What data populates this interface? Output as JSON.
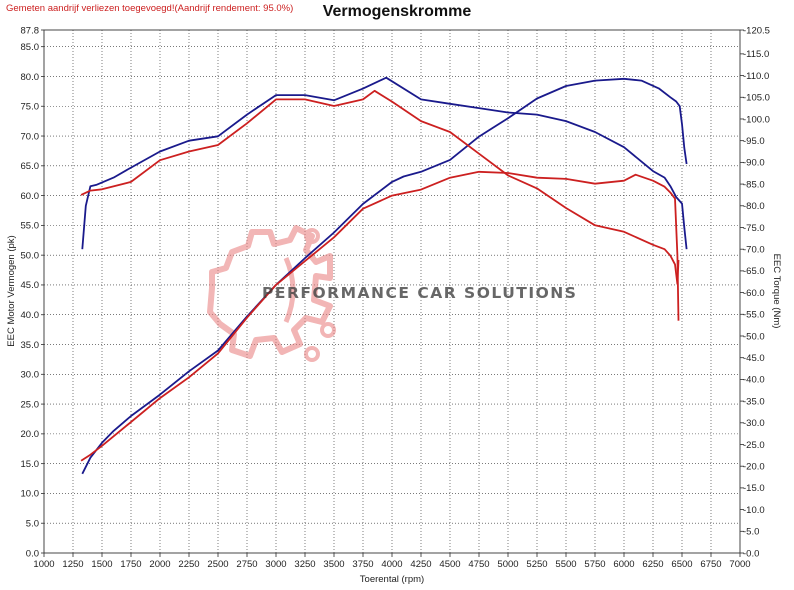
{
  "header": {
    "note": "Gemeten aandrijf verliezen toegevoegd!(Aandrijf rendement: 95.0%)",
    "title": "Vermogenskromme"
  },
  "watermark": {
    "text": "PERFORMANCE CAR SOLUTIONS"
  },
  "colors": {
    "blue": "#1a1a8c",
    "red": "#cc2020",
    "grid": "#2a2a2a",
    "logo": "#e87a7a"
  },
  "chart_data": {
    "type": "line",
    "title": "Vermogenskromme",
    "xlabel": "Toerental (rpm)",
    "ylabel_left": "EEC Motor Vermogen (pk)",
    "ylabel_right": "EEC Torque (Nm)",
    "xlim": [
      1000,
      7000
    ],
    "ylim_left": [
      0,
      87.8
    ],
    "ylim_right": [
      0,
      120.5
    ],
    "x_ticks": [
      "1000",
      "1250",
      "1500",
      "1750",
      "2000",
      "2250",
      "2500",
      "2750",
      "3000",
      "3250",
      "3500",
      "3750",
      "4000",
      "4250",
      "4500",
      "4750",
      "5000",
      "5250",
      "5500",
      "5750",
      "6000",
      "6250",
      "6500",
      "6750",
      "7000"
    ],
    "y_left_ticks": [
      "0.0",
      "5.0",
      "10.0",
      "15.0",
      "20.0",
      "25.0",
      "30.0",
      "35.0",
      "40.0",
      "45.0",
      "50.0",
      "55.0",
      "60.0",
      "65.0",
      "70.0",
      "75.0",
      "80.0",
      "85.0",
      "87.8"
    ],
    "y_right_ticks": [
      "0.0",
      "5.0",
      "10.0",
      "15.0",
      "20.0",
      "25.0",
      "30.0",
      "35.0",
      "40.0",
      "45.0",
      "50.0",
      "55.0",
      "60.0",
      "65.0",
      "70.0",
      "75.0",
      "80.0",
      "85.0",
      "90.0",
      "95.0",
      "100.0",
      "105.0",
      "110.0",
      "115.0",
      "120.5"
    ],
    "grid": true,
    "series": [
      {
        "axis": "left",
        "color": "#1a1a8c",
        "x": [
          1330,
          1400,
          1500,
          1600,
          1750,
          2000,
          2250,
          2500,
          2750,
          3000,
          3250,
          3500,
          3750,
          4000,
          4100,
          4250,
          4500,
          4750,
          5000,
          5250,
          5500,
          5750,
          6000,
          6150,
          6300,
          6400,
          6450,
          6480,
          6500,
          6520,
          6540
        ],
        "y": [
          13.3,
          16.0,
          18.5,
          20.5,
          23.0,
          26.6,
          30.5,
          34.0,
          39.7,
          45.0,
          49.5,
          53.8,
          58.6,
          62.3,
          63.2,
          64.0,
          66.0,
          69.9,
          73.0,
          76.3,
          78.4,
          79.3,
          79.6,
          79.3,
          78.0,
          76.5,
          75.8,
          75.0,
          72.0,
          68.0,
          65.3
        ]
      },
      {
        "axis": "right",
        "color": "#1a1a8c",
        "x": [
          1330,
          1360,
          1400,
          1450,
          1600,
          1750,
          2000,
          2250,
          2500,
          2750,
          3000,
          3250,
          3500,
          3750,
          3950,
          4250,
          4500,
          4750,
          5000,
          5250,
          5500,
          5750,
          6000,
          6250,
          6350,
          6400,
          6450,
          6500,
          6520,
          6540
        ],
        "y": [
          70.0,
          80.0,
          84.5,
          84.8,
          86.5,
          88.8,
          92.5,
          95.0,
          96.0,
          101.0,
          105.5,
          105.5,
          104.3,
          107.0,
          109.5,
          104.5,
          103.5,
          102.5,
          101.5,
          101.0,
          99.5,
          97.0,
          93.5,
          88.0,
          86.5,
          84.5,
          82.0,
          80.5,
          75.0,
          70.0
        ]
      },
      {
        "axis": "left",
        "color": "#cc2020",
        "x": [
          1320,
          1400,
          1500,
          1750,
          2000,
          2250,
          2500,
          2750,
          3000,
          3250,
          3500,
          3750,
          4000,
          4250,
          4500,
          4750,
          5000,
          5250,
          5500,
          5750,
          6000,
          6100,
          6250,
          6350,
          6400,
          6440,
          6460,
          6470
        ],
        "y": [
          15.5,
          16.5,
          18.0,
          22.0,
          26.0,
          29.5,
          33.5,
          39.5,
          45.0,
          49.0,
          53.0,
          57.8,
          60.0,
          61.0,
          63.0,
          64.0,
          63.8,
          63.0,
          62.8,
          62.0,
          62.5,
          63.5,
          62.5,
          61.5,
          60.5,
          59.5,
          50.0,
          39.0
        ]
      },
      {
        "axis": "right",
        "color": "#cc2020",
        "x": [
          1320,
          1400,
          1500,
          1750,
          2000,
          2250,
          2500,
          2750,
          3000,
          3250,
          3500,
          3750,
          3850,
          4000,
          4250,
          4500,
          4750,
          5000,
          5250,
          5500,
          5750,
          6000,
          6250,
          6350,
          6400,
          6440,
          6460,
          6470
        ],
        "y": [
          82.5,
          83.5,
          83.8,
          85.5,
          90.5,
          92.5,
          94.0,
          99.0,
          104.5,
          104.5,
          103.0,
          104.5,
          106.5,
          104.0,
          99.5,
          97.0,
          92.0,
          87.0,
          84.0,
          79.5,
          75.5,
          74.0,
          71.0,
          70.0,
          68.5,
          66.5,
          62.0,
          67.5
        ]
      }
    ]
  }
}
